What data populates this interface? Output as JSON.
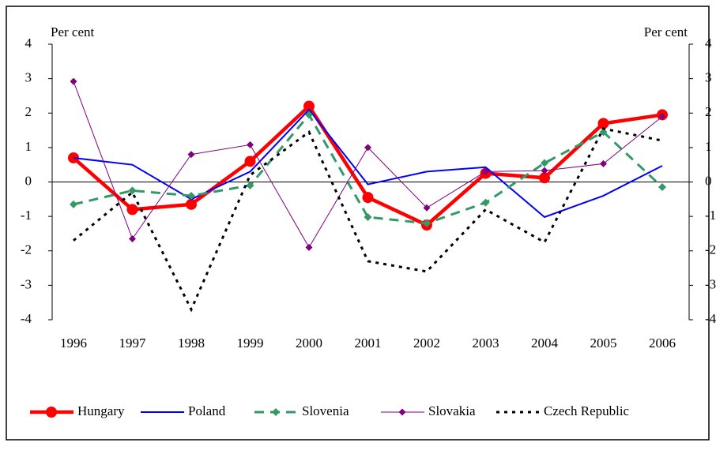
{
  "chart_data": {
    "type": "line",
    "ylabel": "Per cent",
    "y2label": "Per cent",
    "categories": [
      "1996",
      "1997",
      "1998",
      "1999",
      "2000",
      "2001",
      "2002",
      "2003",
      "2004",
      "2005",
      "2006"
    ],
    "series": [
      {
        "name": "Hungary",
        "color": "#ff0000",
        "values": [
          0.7,
          -0.8,
          -0.65,
          0.6,
          2.2,
          -0.45,
          -1.25,
          0.25,
          0.12,
          1.7,
          1.95
        ]
      },
      {
        "name": "Poland",
        "color": "#0000ff",
        "values": [
          0.7,
          0.5,
          -0.5,
          0.3,
          2.1,
          -0.07,
          0.3,
          0.43,
          -1.02,
          -0.4,
          0.47
        ]
      },
      {
        "name": "Slovenia",
        "color": "#339966",
        "values": [
          -0.65,
          -0.25,
          -0.4,
          -0.1,
          1.95,
          -1.02,
          -1.2,
          -0.6,
          0.55,
          1.45,
          -0.15
        ]
      },
      {
        "name": "Slovakia",
        "color": "#800080",
        "values": [
          2.92,
          -1.65,
          0.8,
          1.08,
          -1.9,
          1.0,
          -0.75,
          0.3,
          0.33,
          0.53,
          1.9
        ]
      },
      {
        "name": "Czech Republic",
        "color": "#000000",
        "values": [
          -1.7,
          -0.3,
          -3.7,
          0.2,
          1.45,
          -2.3,
          -2.6,
          -0.8,
          -1.75,
          1.55,
          1.2
        ]
      }
    ],
    "ylim": [
      -4,
      4
    ],
    "yticks": [
      -4,
      -3,
      -2,
      -1,
      0,
      1,
      2,
      3,
      4
    ],
    "y2lim": [
      -4,
      4
    ],
    "y2ticks": [
      -4,
      -3,
      -2,
      -1,
      0,
      1,
      2,
      3,
      4
    ]
  }
}
